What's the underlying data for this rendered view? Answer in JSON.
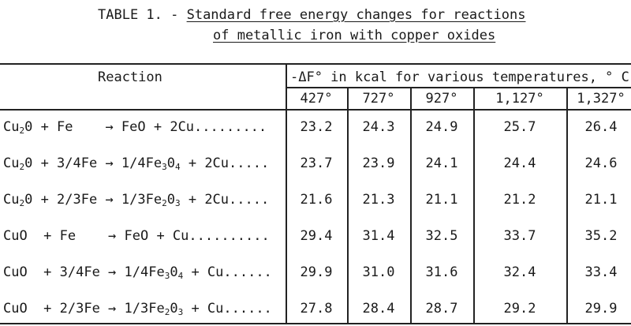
{
  "title": {
    "prefix": "TABLE 1. - ",
    "line1": "Standard free energy changes for reactions",
    "line2": "of metallic iron with copper oxides"
  },
  "table": {
    "reaction_header": "Reaction",
    "energy_header": "-ΔF° in kcal for various temperatures, ° C",
    "temperatures": [
      "427°",
      "727°",
      "927°",
      "1,127°",
      "1,327°"
    ],
    "rows": [
      {
        "reaction": [
          "Cu",
          "2",
          "0 + Fe    → FeO + 2Cu........."
        ],
        "values": [
          "23.2",
          "24.3",
          "24.9",
          "25.7",
          "26.4"
        ]
      },
      {
        "reaction": [
          "Cu",
          "2",
          "0 + 3/4Fe → 1/4Fe",
          "3",
          "0",
          "4",
          " + 2Cu....."
        ],
        "values": [
          "23.7",
          "23.9",
          "24.1",
          "24.4",
          "24.6"
        ]
      },
      {
        "reaction": [
          "Cu",
          "2",
          "0 + 2/3Fe → 1/3Fe",
          "2",
          "0",
          "3",
          " + 2Cu....."
        ],
        "values": [
          "21.6",
          "21.3",
          "21.1",
          "21.2",
          "21.1"
        ]
      },
      {
        "reaction": [
          "CuO  + Fe    → FeO + Cu.........."
        ],
        "values": [
          "29.4",
          "31.4",
          "32.5",
          "33.7",
          "35.2"
        ]
      },
      {
        "reaction": [
          "CuO  + 3/4Fe → 1/4Fe",
          "3",
          "0",
          "4",
          " + Cu......"
        ],
        "values": [
          "29.9",
          "31.0",
          "31.6",
          "32.4",
          "33.4"
        ]
      },
      {
        "reaction": [
          "CuO  + 2/3Fe → 1/3Fe",
          "2",
          "0",
          "3",
          " + Cu......"
        ],
        "values": [
          "27.8",
          "28.4",
          "28.7",
          "29.2",
          "29.9"
        ]
      }
    ]
  }
}
